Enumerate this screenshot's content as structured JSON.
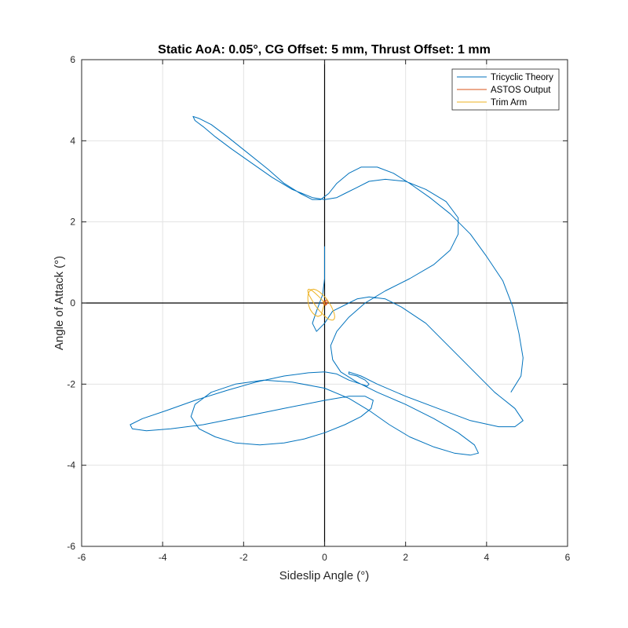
{
  "chart_data": {
    "type": "line",
    "title": "Static AoA: 0.05°, CG Offset: 5 mm, Thrust Offset: 1 mm",
    "xlabel": "Sideslip Angle (°)",
    "ylabel": "Angle of Attack (°)",
    "xlim": [
      -6,
      6
    ],
    "ylim": [
      -6,
      6
    ],
    "xticks": [
      "-6",
      "-4",
      "-2",
      "0",
      "2",
      "4",
      "6"
    ],
    "yticks": [
      "-6",
      "-4",
      "-2",
      "0",
      "2",
      "4",
      "6"
    ],
    "grid": true,
    "legend_position": "top-right",
    "series": [
      {
        "name": "Tricyclic Theory",
        "color": "#0072BD",
        "x": [
          0,
          0.0,
          0.0,
          -0.05,
          -0.2,
          -0.3,
          -0.2,
          0.0,
          0.2,
          0.6,
          0.8,
          1.1,
          1.5,
          1.9,
          2.5,
          3.0,
          3.6,
          4.2,
          4.7,
          4.9,
          4.7,
          4.3,
          3.6,
          2.8,
          2.0,
          1.3,
          0.9,
          0.6,
          0.6,
          0.8,
          1.0,
          1.1,
          1.05,
          0.9,
          0.6,
          0.3,
          0.0,
          -0.4,
          -1.0,
          -1.7,
          -2.4,
          -3.2,
          -3.9,
          -4.5,
          -4.8,
          -4.75,
          -4.4,
          -3.8,
          -3.0,
          -2.0,
          -1.0,
          0.0,
          0.6,
          1.0,
          1.2,
          1.15,
          0.9,
          0.5,
          0.0,
          -0.5,
          -1.0,
          -1.6,
          -2.2,
          -2.7,
          -3.1,
          -3.3,
          -3.2,
          -2.8,
          -2.2,
          -1.5,
          -0.8,
          0.0,
          0.6,
          1.1,
          1.6,
          2.1,
          2.7,
          3.2,
          3.6,
          3.8,
          3.7,
          3.3,
          2.7,
          2.0,
          1.3,
          0.8,
          0.4,
          0.2,
          0.15,
          0.3,
          0.6,
          1.0,
          1.5,
          2.1,
          2.7,
          3.1,
          3.3,
          3.3,
          3.0,
          2.5,
          2.0,
          1.5,
          1.1,
          0.8,
          0.5,
          0.3,
          0.0,
          -0.3,
          -0.8,
          -1.3,
          -1.8,
          -2.3,
          -2.7,
          -3.0,
          -3.2,
          -3.25,
          -3.1,
          -2.8,
          -2.4,
          -1.9,
          -1.4,
          -1.0,
          -0.6,
          -0.3,
          -0.1,
          0.1,
          0.3,
          0.6,
          0.9,
          1.3,
          1.7,
          2.1,
          2.6,
          3.1,
          3.6,
          4.0,
          4.4,
          4.65,
          4.8,
          4.9,
          4.85,
          4.6
        ],
        "y": [
          1.4,
          1.0,
          0.6,
          0.2,
          -0.2,
          -0.5,
          -0.7,
          -0.5,
          -0.2,
          0.0,
          0.1,
          0.15,
          0.1,
          -0.1,
          -0.5,
          -1.0,
          -1.6,
          -2.2,
          -2.6,
          -2.9,
          -3.05,
          -3.05,
          -2.9,
          -2.6,
          -2.3,
          -2.0,
          -1.8,
          -1.7,
          -1.75,
          -1.8,
          -1.9,
          -2.0,
          -2.05,
          -2.0,
          -1.9,
          -1.75,
          -1.7,
          -1.72,
          -1.8,
          -1.95,
          -2.15,
          -2.4,
          -2.65,
          -2.85,
          -3.0,
          -3.1,
          -3.15,
          -3.1,
          -3.0,
          -2.8,
          -2.6,
          -2.4,
          -2.3,
          -2.3,
          -2.4,
          -2.6,
          -2.8,
          -3.0,
          -3.2,
          -3.35,
          -3.45,
          -3.5,
          -3.45,
          -3.3,
          -3.1,
          -2.8,
          -2.5,
          -2.2,
          -2.0,
          -1.9,
          -1.95,
          -2.1,
          -2.35,
          -2.65,
          -3.0,
          -3.3,
          -3.55,
          -3.7,
          -3.75,
          -3.7,
          -3.5,
          -3.2,
          -2.85,
          -2.5,
          -2.2,
          -1.95,
          -1.7,
          -1.4,
          -1.05,
          -0.7,
          -0.35,
          0.0,
          0.3,
          0.6,
          0.95,
          1.3,
          1.7,
          2.1,
          2.5,
          2.8,
          3.0,
          3.05,
          3.0,
          2.85,
          2.7,
          2.6,
          2.55,
          2.6,
          2.8,
          3.1,
          3.45,
          3.8,
          4.1,
          4.35,
          4.5,
          4.6,
          4.55,
          4.4,
          4.1,
          3.7,
          3.3,
          2.95,
          2.7,
          2.55,
          2.55,
          2.7,
          2.95,
          3.2,
          3.35,
          3.35,
          3.2,
          2.95,
          2.6,
          2.2,
          1.7,
          1.15,
          0.55,
          -0.1,
          -0.75,
          -1.35,
          -1.8,
          -2.2
        ]
      },
      {
        "name": "ASTOS Output",
        "color": "#D95319",
        "x": [
          0.0,
          0.02,
          0.05,
          0.08,
          0.06,
          0.02,
          -0.02,
          -0.04,
          -0.01,
          0.03,
          0.05,
          0.02,
          0.0
        ],
        "y": [
          0.0,
          0.06,
          0.08,
          0.04,
          -0.02,
          -0.06,
          -0.04,
          0.01,
          0.05,
          0.04,
          0.0,
          -0.03,
          0.0
        ]
      },
      {
        "name": "Trim Arm",
        "color": "#EDB120",
        "x": [
          0.0,
          -0.085,
          -0.165,
          -0.24,
          -0.3,
          -0.355,
          -0.39,
          -0.41,
          -0.415,
          -0.405,
          -0.375,
          -0.33,
          -0.27,
          -0.2,
          -0.12,
          -0.04,
          0.035,
          0.105,
          0.165,
          0.21,
          0.24,
          0.25,
          0.24,
          0.21,
          0.165,
          0.105,
          0.035,
          -0.04,
          -0.12,
          -0.2,
          -0.27,
          -0.33,
          -0.375,
          -0.405,
          -0.415,
          -0.41,
          -0.39,
          -0.355,
          -0.3,
          -0.24,
          -0.165,
          -0.085,
          0.0
        ],
        "y": [
          0.0,
          0.1,
          0.18,
          0.25,
          0.3,
          0.33,
          0.34,
          0.33,
          0.3,
          0.25,
          0.18,
          0.1,
          0.0,
          -0.1,
          -0.2,
          -0.28,
          -0.35,
          -0.4,
          -0.42,
          -0.42,
          -0.39,
          -0.34,
          -0.27,
          -0.18,
          -0.08,
          0.02,
          0.12,
          0.2,
          0.27,
          0.32,
          0.34,
          0.33,
          0.29,
          0.22,
          0.13,
          0.03,
          -0.07,
          -0.16,
          -0.24,
          -0.3,
          -0.33,
          -0.3,
          0.0
        ]
      }
    ]
  }
}
